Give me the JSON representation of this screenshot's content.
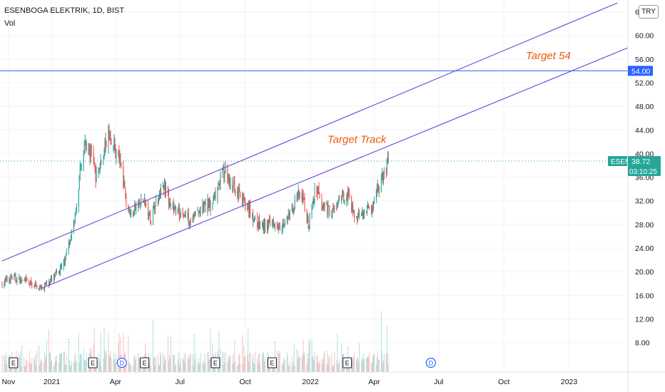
{
  "header": {
    "symbol_line": "ESENBOGA ELEKTRIK, 1D, BIST",
    "volume_label": "Vol"
  },
  "currency_button": "TRY",
  "colors": {
    "up": "#26a69a",
    "down": "#ef5350",
    "channel": "#7b52d4",
    "target_line": "#2962ff",
    "annotation": "#e8590c",
    "grid": "#f0f3fa",
    "axis_text": "#131722",
    "symbol_tag": "#26a69a"
  },
  "chart_data": {
    "type": "candlestick",
    "symbol": "ESEN",
    "interval": "1D",
    "exchange": "BIST",
    "ylim": [
      3.0,
      66.0
    ],
    "y_ticks": [
      8.0,
      12.0,
      16.0,
      20.0,
      24.0,
      28.0,
      32.0,
      36.0,
      40.0,
      44.0,
      48.0,
      52.0,
      56.0,
      60.0,
      64.0
    ],
    "y_tick_labels": [
      "8.00",
      "12.00",
      "16.00",
      "20.00",
      "24.00",
      "28.00",
      "32.00",
      "36.00",
      "40.00",
      "44.00",
      "48.00",
      "52.00",
      "56.00",
      "60.00",
      "64.00"
    ],
    "x_range": [
      "2020-10-20",
      "2023-03-25"
    ],
    "x_ticks": [
      {
        "date": "2020-11-01",
        "label": "Nov"
      },
      {
        "date": "2021-01-01",
        "label": "2021"
      },
      {
        "date": "2021-04-01",
        "label": "Apr"
      },
      {
        "date": "2021-07-01",
        "label": "Jul"
      },
      {
        "date": "2021-10-01",
        "label": "Oct"
      },
      {
        "date": "2022-01-01",
        "label": "2022"
      },
      {
        "date": "2022-04-01",
        "label": "Apr"
      },
      {
        "date": "2022-07-01",
        "label": "Jul"
      },
      {
        "date": "2022-10-01",
        "label": "Oct"
      },
      {
        "date": "2023-01-01",
        "label": "2023"
      }
    ],
    "price_path": [
      [
        "2020-10-23",
        18.0
      ],
      [
        "2020-11-05",
        19.0
      ],
      [
        "2020-11-20",
        18.5
      ],
      [
        "2020-12-05",
        17.8
      ],
      [
        "2020-12-18",
        17.2
      ],
      [
        "2021-01-01",
        18.6
      ],
      [
        "2021-01-15",
        20.5
      ],
      [
        "2021-01-28",
        26.0
      ],
      [
        "2021-02-05",
        30.0
      ],
      [
        "2021-02-10",
        37.0
      ],
      [
        "2021-02-17",
        42.0
      ],
      [
        "2021-02-25",
        40.0
      ],
      [
        "2021-03-05",
        36.0
      ],
      [
        "2021-03-15",
        40.0
      ],
      [
        "2021-03-22",
        44.0
      ],
      [
        "2021-03-29",
        41.5
      ],
      [
        "2021-04-08",
        38.0
      ],
      [
        "2021-04-15",
        33.0
      ],
      [
        "2021-04-22",
        29.5
      ],
      [
        "2021-05-01",
        31.0
      ],
      [
        "2021-05-10",
        32.0
      ],
      [
        "2021-05-20",
        29.0
      ],
      [
        "2021-06-01",
        33.0
      ],
      [
        "2021-06-08",
        34.5
      ],
      [
        "2021-06-18",
        31.0
      ],
      [
        "2021-07-01",
        30.0
      ],
      [
        "2021-07-15",
        29.0
      ],
      [
        "2021-08-01",
        30.5
      ],
      [
        "2021-08-15",
        32.0
      ],
      [
        "2021-08-24",
        35.0
      ],
      [
        "2021-09-01",
        37.0
      ],
      [
        "2021-09-12",
        35.0
      ],
      [
        "2021-09-22",
        33.0
      ],
      [
        "2021-10-05",
        31.0
      ],
      [
        "2021-10-15",
        28.5
      ],
      [
        "2021-10-28",
        27.5
      ],
      [
        "2021-11-10",
        28.5
      ],
      [
        "2021-11-25",
        28.0
      ],
      [
        "2021-12-05",
        30.0
      ],
      [
        "2021-12-15",
        33.0
      ],
      [
        "2021-12-22",
        32.0
      ],
      [
        "2021-12-29",
        28.0
      ],
      [
        "2022-01-05",
        32.0
      ],
      [
        "2022-01-10",
        34.5
      ],
      [
        "2022-01-20",
        31.0
      ],
      [
        "2022-02-01",
        30.0
      ],
      [
        "2022-02-15",
        32.5
      ],
      [
        "2022-02-24",
        33.5
      ],
      [
        "2022-03-05",
        29.0
      ],
      [
        "2022-03-12",
        30.0
      ],
      [
        "2022-03-25",
        30.5
      ],
      [
        "2022-04-01",
        31.0
      ],
      [
        "2022-04-06",
        34.0
      ],
      [
        "2022-04-12",
        35.5
      ],
      [
        "2022-04-18",
        37.5
      ],
      [
        "2022-04-21",
        38.72
      ]
    ],
    "last_price": 38.72,
    "last_price_label": "38.72",
    "countdown": "03:10:25",
    "channel_lines": [
      {
        "start": [
          "2020-10-23",
          21.8
        ],
        "end": [
          "2023-03-10",
          65.5
        ]
      },
      {
        "start": [
          "2020-12-18",
          17.2
        ],
        "end": [
          "2023-03-25",
          57.9
        ]
      }
    ],
    "horizontal_line": {
      "value": 54.0,
      "label": "54.00"
    },
    "annotations": [
      {
        "text": "Target 54",
        "x": "2022-11-01",
        "y": 56.0
      },
      {
        "text": "Target Track",
        "x": "2022-01-25",
        "y": 41.8
      }
    ],
    "event_markers": [
      {
        "date": "2020-11-08",
        "label": "E",
        "type": "earnings"
      },
      {
        "date": "2021-02-28",
        "label": "E",
        "type": "earnings"
      },
      {
        "date": "2021-04-10",
        "label": "D",
        "type": "dividend"
      },
      {
        "date": "2021-05-12",
        "label": "E",
        "type": "earnings"
      },
      {
        "date": "2021-08-20",
        "label": "E",
        "type": "earnings"
      },
      {
        "date": "2021-11-08",
        "label": "E",
        "type": "earnings"
      },
      {
        "date": "2022-02-22",
        "label": "E",
        "type": "earnings"
      },
      {
        "date": "2022-06-20",
        "label": "D",
        "type": "dividend"
      }
    ],
    "volume": {
      "visible": true,
      "relative_scale": true
    },
    "grid": true
  }
}
